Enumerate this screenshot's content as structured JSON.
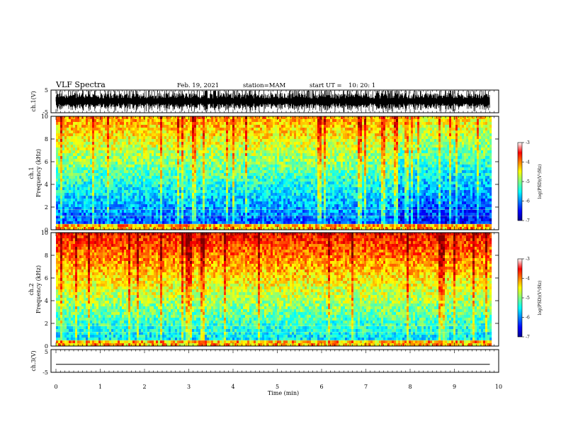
{
  "header": {
    "title": "VLF Spectra",
    "date": "Feb. 19, 2021",
    "station": "station=MAM",
    "start_label": "start  UT =",
    "start_time": "10: 20: 1"
  },
  "chart_data": {
    "type": "heatmap",
    "x_axis": {
      "label": "Time  (min)",
      "range": [
        0,
        10
      ],
      "ticks": [
        0,
        1,
        2,
        3,
        4,
        5,
        6,
        7,
        8,
        9,
        10
      ],
      "tick_labels": [
        "0",
        "1",
        "2",
        "3",
        "4",
        "5",
        "6",
        "7",
        "8",
        "9",
        "10"
      ],
      "data_end": 9.8
    },
    "panels": [
      {
        "kind": "waveform",
        "ylabel": "ch.1(V)",
        "yrange": [
          -5,
          5
        ],
        "tick_labels": [
          "5",
          "-5"
        ]
      },
      {
        "kind": "spectrogram",
        "ylabel_line1": "ch.1",
        "ylabel_line2": "Frequency  (kHz)",
        "yrange": [
          0,
          10
        ],
        "ticks": [
          0,
          2,
          4,
          6,
          8,
          10
        ],
        "tick_labels": [
          "0",
          "2",
          "4",
          "6",
          "8",
          "10"
        ],
        "colorbar": {
          "label": "log(PSD)(V²/Hz)",
          "range": [
            -7,
            -3
          ],
          "ticks": [
            -3,
            -4,
            -5,
            -6,
            -7
          ],
          "tick_labels": [
            "-3",
            "-4",
            "-5",
            "-6",
            "-7"
          ]
        }
      },
      {
        "kind": "spectrogram",
        "ylabel_line1": "ch.2",
        "ylabel_line2": "Frequency  (kHz)",
        "yrange": [
          0,
          10
        ],
        "ticks": [
          0,
          2,
          4,
          6,
          8,
          10
        ],
        "tick_labels": [
          "0",
          "2",
          "4",
          "6",
          "8",
          "10"
        ],
        "colorbar": {
          "label": "log(PSD)(V²/Hz)",
          "range": [
            -7,
            -3
          ],
          "ticks": [
            -3,
            -4,
            -5,
            -6,
            -7
          ],
          "tick_labels": [
            "-3",
            "-4",
            "-5",
            "-6",
            "-7"
          ]
        }
      },
      {
        "kind": "waveform",
        "ylabel": "ch.3(V)",
        "yrange": [
          -5,
          5
        ],
        "tick_labels": [
          "5",
          "-5"
        ],
        "trace_value": -1.5
      }
    ],
    "colormap": [
      "#00008f",
      "#0000ff",
      "#0080ff",
      "#00ffff",
      "#80ff80",
      "#ffff00",
      "#ff8000",
      "#ff0000",
      "#800000"
    ]
  }
}
